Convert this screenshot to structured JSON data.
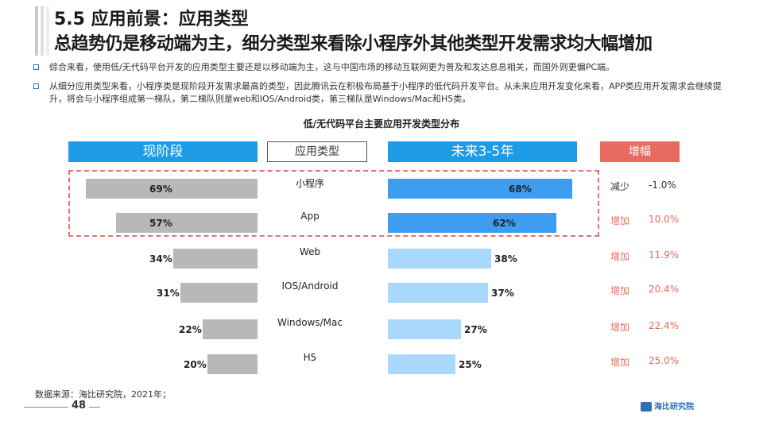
{
  "header": {
    "section_title": "5.5 应用前景：应用类型",
    "headline": "总趋势仍是移动端为主，细分类型来看除小程序外其他类型开发需求均大幅增加"
  },
  "bullets": [
    "综合来看，使用低/无代码平台开发的应用类型主要还是以移动端为主，这与中国市场的移动互联网更为普及和发达息息相关，而国外则更偏PC端。",
    "从细分应用类型来看，小程序类是现阶段开发需求最高的类型，因此腾讯云在积极布局基于小程序的低代码开发平台。从未来应用开发变化来看，APP类应用开发需求会继续提升，将会与小程序组成第一梯队，第二梯队则是web和IOS/Android类，第三梯队是Windows/Mac和H5类。"
  ],
  "chart_data": {
    "type": "bar",
    "title": "低/无代码平台主要应用开发类型分布",
    "column_headers": {
      "current": "现阶段",
      "category": "应用类型",
      "future": "未来3-5年",
      "change": "增幅"
    },
    "categories": [
      "小程序",
      "App",
      "Web",
      "IOS/Android",
      "Windows/Mac",
      "H5"
    ],
    "series": [
      {
        "name": "现阶段",
        "values": [
          69,
          57,
          34,
          31,
          22,
          20
        ],
        "labels": [
          "69%",
          "57%",
          "34%",
          "31%",
          "22%",
          "20%"
        ]
      },
      {
        "name": "未来3-5年",
        "values": [
          68,
          62,
          38,
          37,
          27,
          25
        ],
        "labels": [
          "68%",
          "62%",
          "38%",
          "37%",
          "27%",
          "25%"
        ]
      }
    ],
    "change_words": [
      "减少",
      "增加",
      "增加",
      "增加",
      "增加",
      "增加"
    ],
    "change_values": [
      "-1.0%",
      "10.0%",
      "11.9%",
      "20.4%",
      "22.4%",
      "25.0%"
    ],
    "ylim": [
      0,
      100
    ],
    "highlight_group": [
      "小程序",
      "App"
    ]
  },
  "colors": {
    "header_blue": "#1e9be6",
    "increase_red": "#e86b5f",
    "current_bar": "#b8b8b8",
    "future_top": "#3d9df0",
    "future_rest": "#a8d8fb",
    "highlight_dash": "#e57373"
  },
  "footer": {
    "source": "数据来源：海比研究院，2021年；",
    "page_number": "48",
    "logo_text": "海比研究院"
  }
}
